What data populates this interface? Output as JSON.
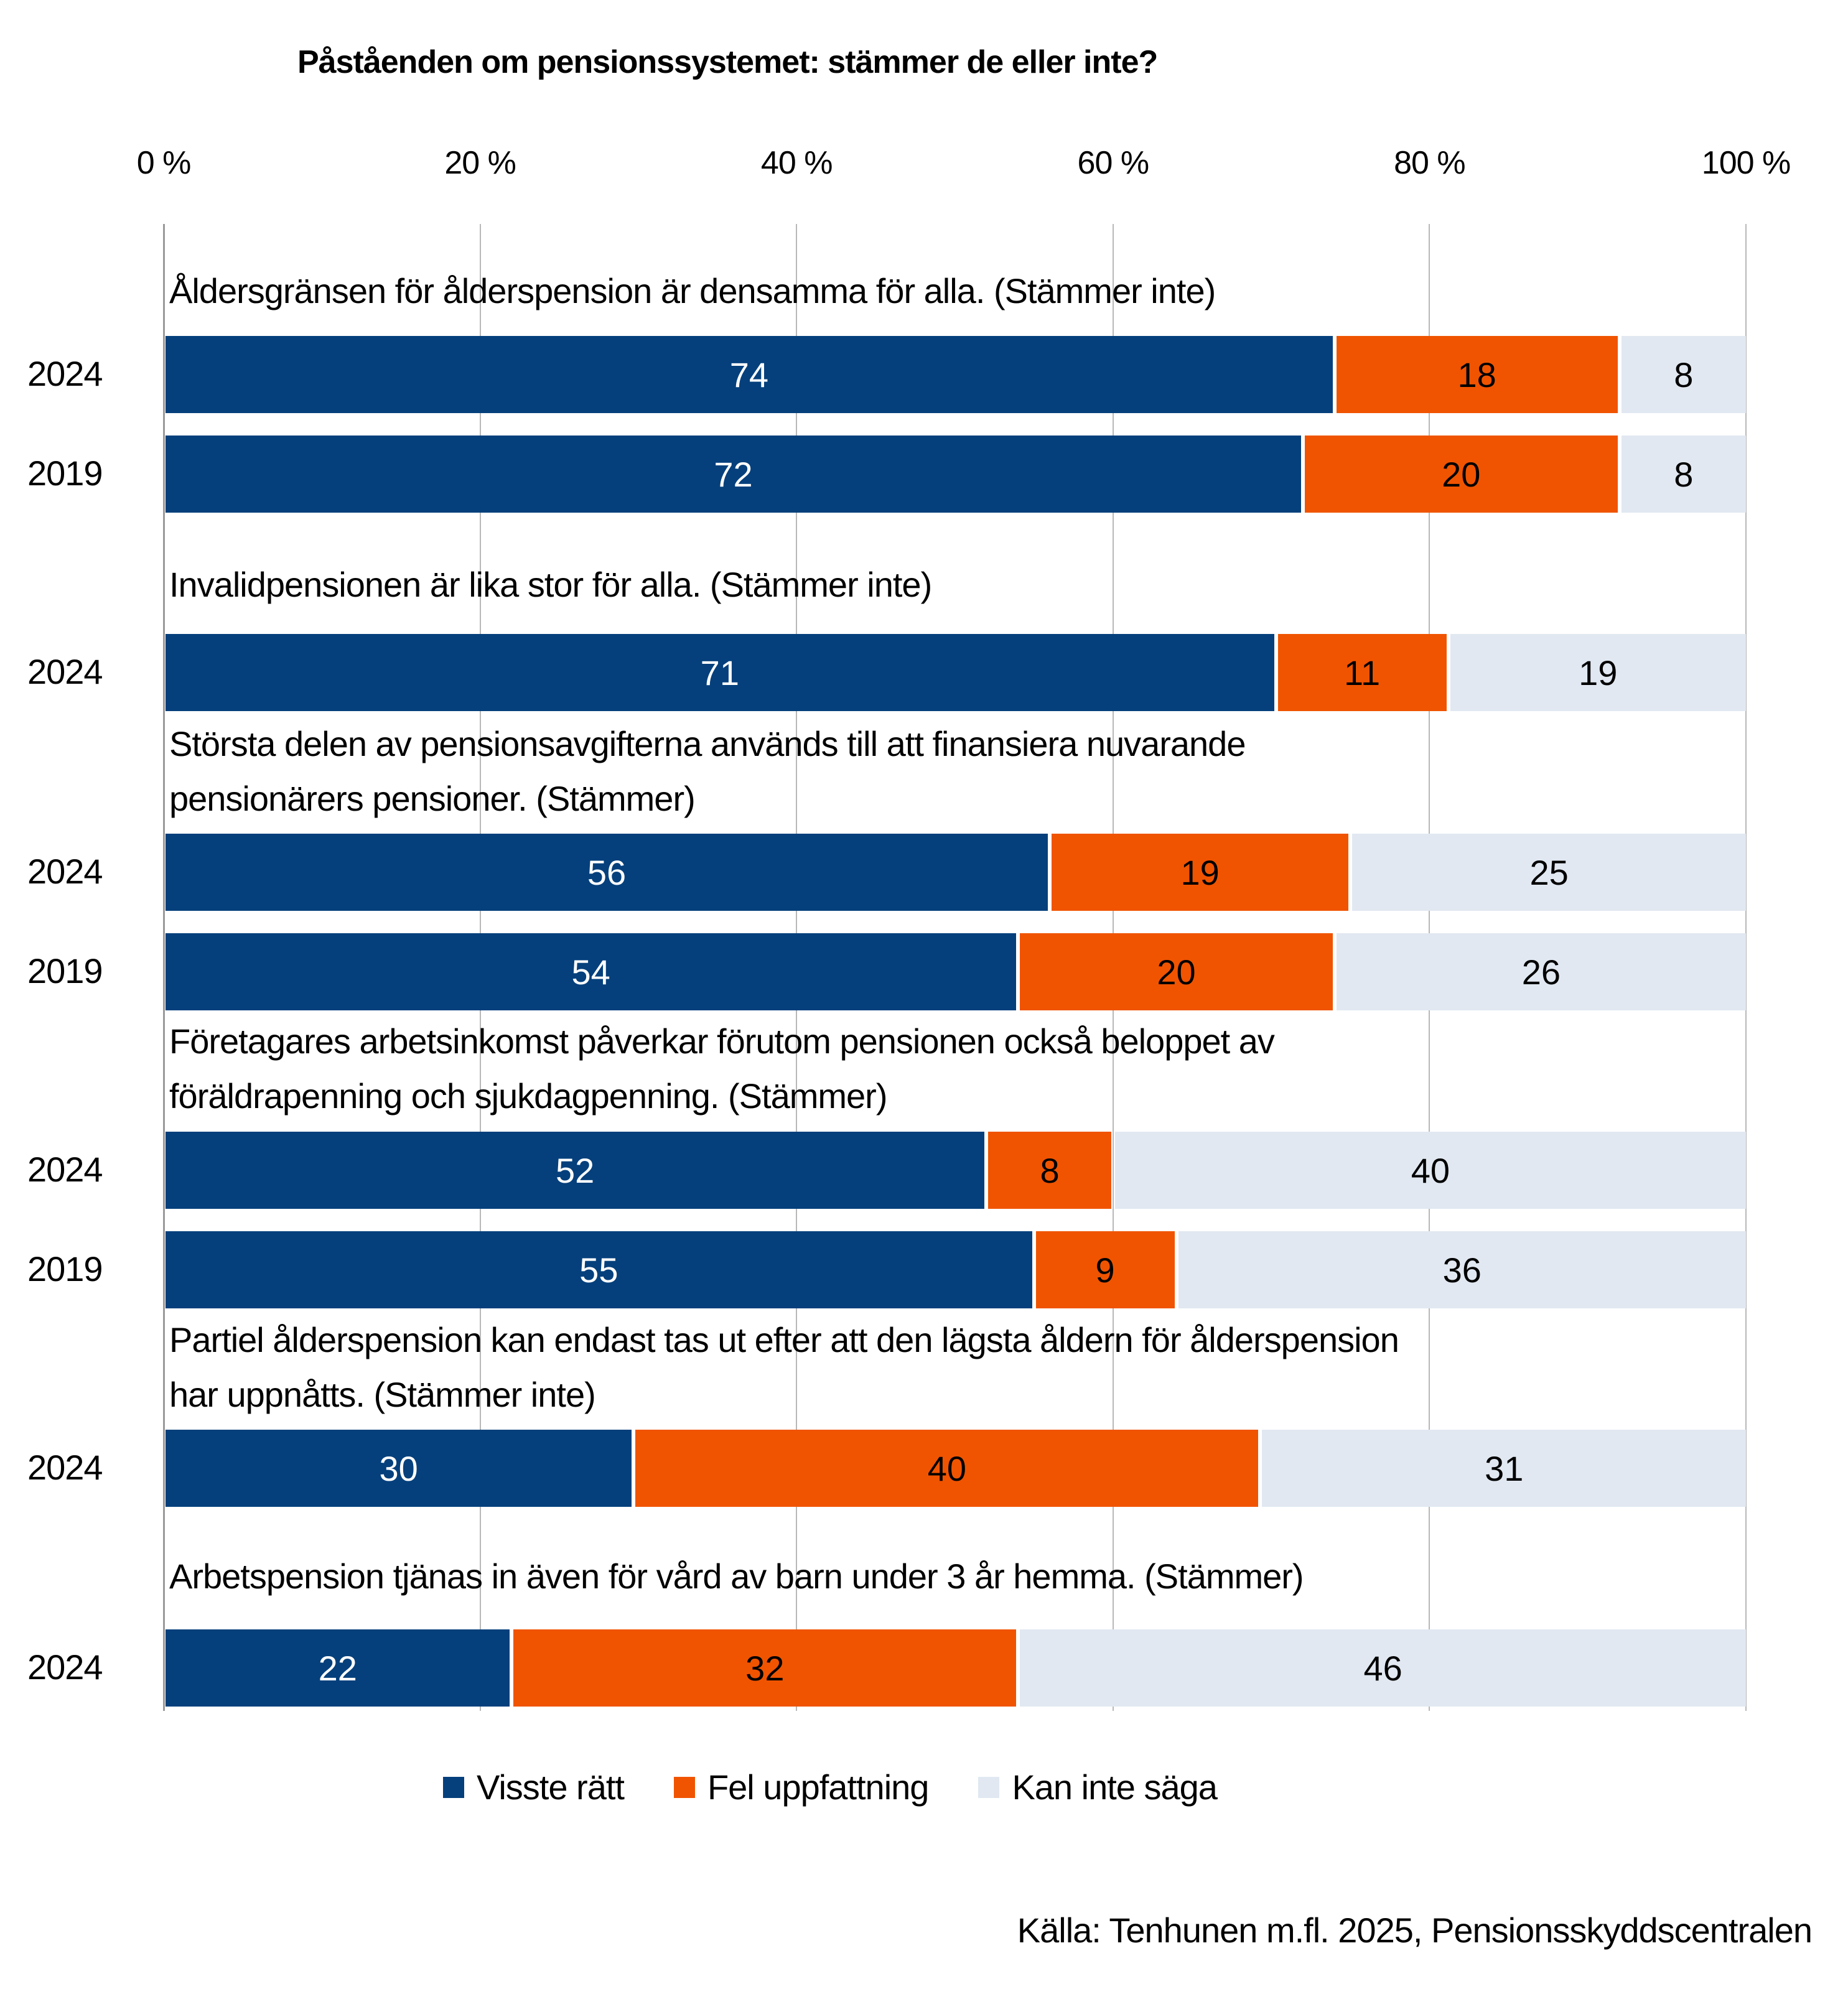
{
  "chart_data": {
    "type": "bar",
    "orientation": "horizontal",
    "stacked": true,
    "title": "Påståenden om pensionssystemet: stämmer de eller inte?",
    "xlabel": "",
    "ylabel": "",
    "xlim": [
      0,
      100
    ],
    "x_ticks": [
      "0 %",
      "20 %",
      "40 %",
      "60 %",
      "80 %",
      "100 %"
    ],
    "grid": true,
    "legend_position": "bottom",
    "series": [
      {
        "name": "Visste rätt",
        "color": "#05407c"
      },
      {
        "name": "Fel uppfattning",
        "color": "#f05400"
      },
      {
        "name": "Kan inte säga",
        "color": "#e1e8f1"
      }
    ],
    "groups": [
      {
        "statement": [
          "Åldersgränsen för ålderspension är densamma för alla. (Stämmer inte)"
        ],
        "rows": [
          {
            "year": "2024",
            "values": [
              74,
              18,
              8
            ]
          },
          {
            "year": "2019",
            "values": [
              72,
              20,
              8
            ]
          }
        ]
      },
      {
        "statement": [
          "Invalidpensionen är lika stor för alla. (Stämmer inte)"
        ],
        "rows": [
          {
            "year": "2024",
            "values": [
              71,
              11,
              19
            ]
          }
        ]
      },
      {
        "statement": [
          "Största delen av pensionsavgifterna används till att finansiera nuvarande",
          "pensionärers pensioner. (Stämmer)"
        ],
        "rows": [
          {
            "year": "2024",
            "values": [
              56,
              19,
              25
            ]
          },
          {
            "year": "2019",
            "values": [
              54,
              20,
              26
            ]
          }
        ]
      },
      {
        "statement": [
          "Företagares arbetsinkomst påverkar förutom pensionen också beloppet av",
          "föräldrapenning och sjukdagpenning. (Stämmer)"
        ],
        "rows": [
          {
            "year": "2024",
            "values": [
              52,
              8,
              40
            ]
          },
          {
            "year": "2019",
            "values": [
              55,
              9,
              36
            ]
          }
        ]
      },
      {
        "statement": [
          "Partiel ålderspension kan endast tas ut efter att den lägsta åldern för ålderspension",
          "har uppnåtts. (Stämmer inte)"
        ],
        "rows": [
          {
            "year": "2024",
            "values": [
              30,
              40,
              31
            ]
          }
        ]
      },
      {
        "statement": [
          "Arbetspension tjänas in även för vård av barn under 3 år hemma. (Stämmer)"
        ],
        "rows": [
          {
            "year": "2024",
            "values": [
              22,
              32,
              46
            ]
          }
        ]
      }
    ],
    "source": "Källa: Tenhunen m.fl. 2025, Pensionsskyddscentralen"
  }
}
